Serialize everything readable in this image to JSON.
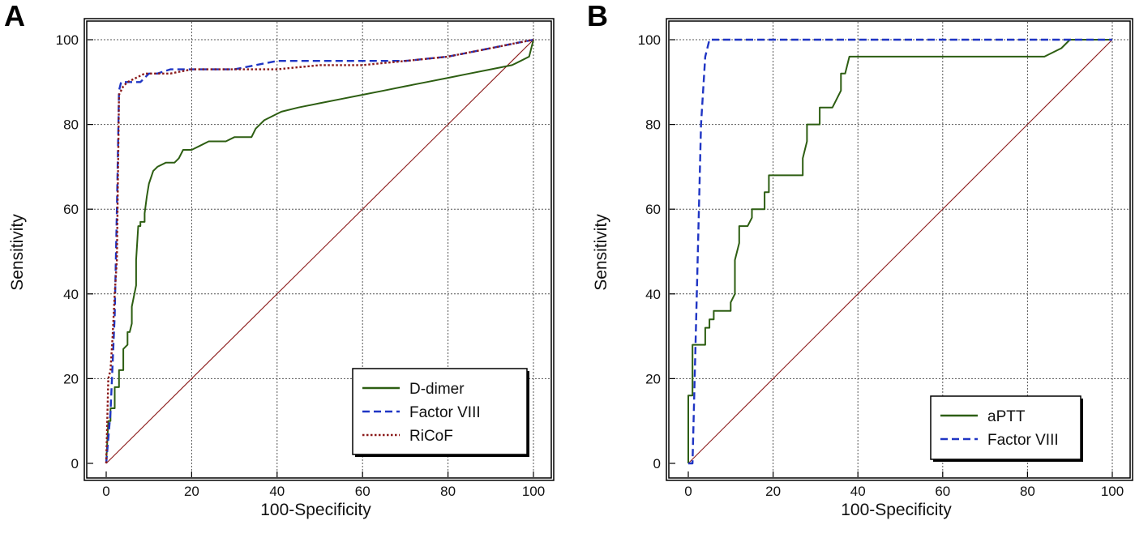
{
  "chart_data": [
    {
      "panel_label": "A",
      "type": "line",
      "xlabel": "100-Specificity",
      "ylabel": "Sensitivity",
      "xlim": [
        0,
        100
      ],
      "ylim": [
        0,
        100
      ],
      "xticks": [
        "0",
        "20",
        "40",
        "60",
        "80",
        "100"
      ],
      "yticks": [
        "0",
        "20",
        "40",
        "60",
        "80",
        "100"
      ],
      "grid": true,
      "legend_position": "bottom-right",
      "reference_line": {
        "x": [
          0,
          100
        ],
        "y": [
          0,
          100
        ],
        "color": "#8b1a1a"
      },
      "series": [
        {
          "name": "D-dimer",
          "color": "#2d5e12",
          "dash": "solid",
          "x": [
            0,
            0.5,
            1,
            1,
            2,
            2,
            3,
            3,
            4,
            4,
            5,
            5,
            5.5,
            6,
            6,
            7,
            7,
            7.5,
            8,
            8,
            9,
            9,
            9.5,
            10,
            11,
            12,
            14,
            16,
            17,
            18,
            20,
            22,
            24,
            26,
            28,
            30,
            32,
            34,
            35,
            37,
            39,
            41,
            45,
            50,
            55,
            60,
            65,
            70,
            75,
            80,
            85,
            90,
            95,
            97,
            99,
            100
          ],
          "y": [
            0,
            10,
            10,
            13,
            13,
            18,
            18,
            22,
            22,
            27,
            28,
            31,
            31,
            33,
            37,
            42,
            48,
            56,
            56,
            57,
            57,
            59,
            63,
            66,
            69,
            70,
            71,
            71,
            72,
            74,
            74,
            75,
            76,
            76,
            76,
            77,
            77,
            77,
            79,
            81,
            82,
            83,
            84,
            85,
            86,
            87,
            88,
            89,
            90,
            91,
            92,
            93,
            94,
            95,
            96,
            100
          ]
        },
        {
          "name": "Factor VIII",
          "color": "#1f35c4",
          "dash": "dashed",
          "x": [
            0,
            1,
            2,
            2.5,
            3,
            3.5,
            4,
            5,
            7,
            8,
            10,
            12,
            15,
            20,
            25,
            30,
            35,
            40,
            50,
            60,
            70,
            80,
            90,
            95,
            100
          ],
          "y": [
            0,
            12,
            35,
            60,
            88,
            90,
            90,
            90,
            90,
            90,
            92,
            92,
            93,
            93,
            93,
            93,
            94,
            95,
            95,
            95,
            95,
            96,
            98,
            99,
            100
          ]
        },
        {
          "name": "RiCoF",
          "color": "#8b1a1a",
          "dash": "dotted",
          "x": [
            0,
            0.5,
            1,
            1.5,
            2,
            2.5,
            3,
            3.5,
            4,
            5,
            7,
            9,
            12,
            15,
            20,
            25,
            30,
            40,
            50,
            60,
            70,
            80,
            90,
            95,
            100
          ],
          "y": [
            0,
            20,
            22,
            30,
            40,
            48,
            87,
            88,
            89,
            90,
            91,
            92,
            92,
            92,
            93,
            93,
            93,
            93,
            94,
            94,
            95,
            96,
            98,
            99,
            100
          ]
        }
      ]
    },
    {
      "panel_label": "B",
      "type": "line",
      "xlabel": "100-Specificity",
      "ylabel": "Sensitivity",
      "xlim": [
        0,
        100
      ],
      "ylim": [
        0,
        100
      ],
      "xticks": [
        "0",
        "20",
        "40",
        "60",
        "80",
        "100"
      ],
      "yticks": [
        "0",
        "20",
        "40",
        "60",
        "80",
        "100"
      ],
      "grid": true,
      "legend_position": "bottom-right",
      "reference_line": {
        "x": [
          0,
          100
        ],
        "y": [
          0,
          100
        ],
        "color": "#8b1a1a"
      },
      "series": [
        {
          "name": "aPTT",
          "color": "#2d5e12",
          "dash": "solid",
          "x": [
            0,
            0,
            1,
            1,
            4,
            4,
            5,
            5,
            6,
            6,
            8,
            8,
            10,
            10,
            11,
            11,
            12,
            12,
            14,
            14,
            15,
            15,
            18,
            18,
            19,
            19,
            27,
            27,
            28,
            28,
            30,
            30,
            31,
            31,
            34,
            34,
            36,
            36,
            37,
            37,
            38,
            38,
            84,
            84,
            88,
            90,
            100
          ],
          "y": [
            0,
            16,
            16,
            28,
            28,
            32,
            32,
            34,
            34,
            36,
            36,
            36,
            36,
            38,
            40,
            48,
            52,
            56,
            56,
            56,
            58,
            60,
            60,
            64,
            64,
            68,
            68,
            72,
            76,
            80,
            80,
            80,
            80,
            84,
            84,
            84,
            88,
            92,
            92,
            92,
            96,
            96,
            96,
            96,
            98,
            100,
            100
          ]
        },
        {
          "name": "Factor VIII",
          "color": "#1f35c4",
          "dash": "dashed",
          "x": [
            0,
            1,
            2,
            3,
            4,
            5,
            10,
            20,
            40,
            60,
            80,
            100
          ],
          "y": [
            0,
            0,
            40,
            80,
            96,
            100,
            100,
            100,
            100,
            100,
            100,
            100
          ]
        }
      ]
    }
  ]
}
